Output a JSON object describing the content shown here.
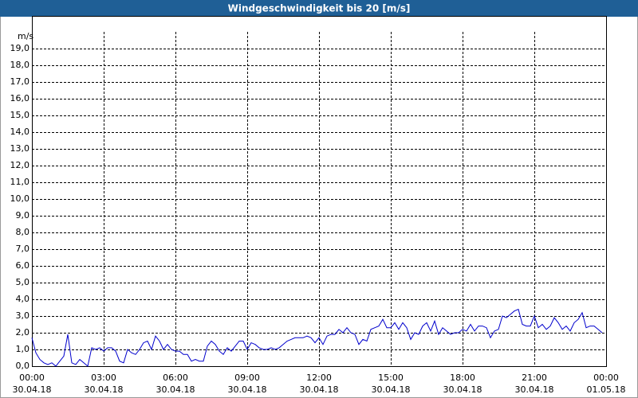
{
  "chart_data": {
    "type": "line",
    "title": "Windgeschwindigkeit bis 20 [m/s]",
    "y_label": "m/s",
    "x": [
      0,
      10,
      20,
      30,
      40,
      50,
      60,
      70,
      80,
      90,
      100,
      110,
      120,
      130,
      140,
      150,
      160,
      170,
      180,
      190,
      200,
      210,
      220,
      230,
      240,
      250,
      260,
      270,
      280,
      290,
      300,
      310,
      320,
      330,
      340,
      350,
      360,
      370,
      380,
      390,
      400,
      410,
      420,
      430,
      440,
      450,
      460,
      470,
      480,
      490,
      500,
      510,
      520,
      530,
      540,
      550,
      560,
      570,
      580,
      590,
      600,
      610,
      620,
      630,
      640,
      650,
      660,
      670,
      680,
      690,
      700,
      710,
      720,
      730,
      740,
      750,
      760,
      770,
      780,
      790,
      800,
      810,
      820,
      830,
      840,
      850,
      860,
      870,
      880,
      890,
      900,
      910,
      920,
      930,
      940,
      950,
      960,
      970,
      980,
      990,
      1000,
      1010,
      1020,
      1030,
      1040,
      1050,
      1060,
      1070,
      1080,
      1090,
      1100,
      1110,
      1120,
      1130,
      1140,
      1150,
      1160,
      1170,
      1180,
      1190,
      1200,
      1210,
      1220,
      1230,
      1240,
      1250,
      1260,
      1270,
      1280,
      1290,
      1300,
      1310,
      1320,
      1330,
      1340,
      1350,
      1360,
      1370,
      1380,
      1390,
      1400,
      1410,
      1420,
      1430
    ],
    "series": [
      {
        "color": "#0000cc",
        "values": [
          1.7,
          0.8,
          0.4,
          0.2,
          0.1,
          0.2,
          0.0,
          0.3,
          0.6,
          1.9,
          0.2,
          0.1,
          0.4,
          0.2,
          0.0,
          1.1,
          1.0,
          1.1,
          0.9,
          1.1,
          1.1,
          0.9,
          0.3,
          0.2,
          1.0,
          0.8,
          0.7,
          1.0,
          1.4,
          1.5,
          1.0,
          1.8,
          1.5,
          1.0,
          1.3,
          1.0,
          0.9,
          0.9,
          0.7,
          0.7,
          0.3,
          0.4,
          0.3,
          0.3,
          1.2,
          1.5,
          1.3,
          0.9,
          0.7,
          1.1,
          0.9,
          1.2,
          1.5,
          1.5,
          1.0,
          1.4,
          1.3,
          1.1,
          1.0,
          1.0,
          1.1,
          1.0,
          1.1,
          1.3,
          1.5,
          1.6,
          1.7,
          1.7,
          1.7,
          1.8,
          1.7,
          1.4,
          1.7,
          1.3,
          1.8,
          1.9,
          1.9,
          2.2,
          2.0,
          2.3,
          2.0,
          1.9,
          1.3,
          1.6,
          1.5,
          2.2,
          2.3,
          2.4,
          2.8,
          2.3,
          2.3,
          2.6,
          2.2,
          2.6,
          2.3,
          1.6,
          2.0,
          1.9,
          2.4,
          2.6,
          2.1,
          2.7,
          1.9,
          2.3,
          2.1,
          1.9,
          2.0,
          2.0,
          2.2,
          2.1,
          2.5,
          2.1,
          2.4,
          2.4,
          2.3,
          1.7,
          2.1,
          2.2,
          3.0,
          2.9,
          3.1,
          3.3,
          3.4,
          2.5,
          2.4,
          2.4,
          3.0,
          2.3,
          2.5,
          2.2,
          2.4,
          2.9,
          2.6,
          2.2,
          2.4,
          2.1,
          2.6,
          2.8,
          3.2,
          2.3,
          2.4,
          2.4,
          2.2,
          2.0
        ]
      }
    ],
    "xlim": [
      0,
      1440
    ],
    "xticks": [
      {
        "value": 0,
        "label": "00:00",
        "date": "30.04.18"
      },
      {
        "value": 180,
        "label": "03:00",
        "date": "30.04.18"
      },
      {
        "value": 360,
        "label": "06:00",
        "date": "30.04.18"
      },
      {
        "value": 540,
        "label": "09:00",
        "date": "30.04.18"
      },
      {
        "value": 720,
        "label": "12:00",
        "date": "30.04.18"
      },
      {
        "value": 900,
        "label": "15:00",
        "date": "30.04.18"
      },
      {
        "value": 1080,
        "label": "18:00",
        "date": "30.04.18"
      },
      {
        "value": 1260,
        "label": "21:00",
        "date": "30.04.18"
      },
      {
        "value": 1440,
        "label": "00:00",
        "date": "01.05.18"
      }
    ],
    "ylim": [
      0,
      20
    ],
    "yticks": [
      {
        "value": 0,
        "label": "0,0"
      },
      {
        "value": 1,
        "label": "1,0"
      },
      {
        "value": 2,
        "label": "2,0"
      },
      {
        "value": 3,
        "label": "3,0"
      },
      {
        "value": 4,
        "label": "4,0"
      },
      {
        "value": 5,
        "label": "5,0"
      },
      {
        "value": 6,
        "label": "6,0"
      },
      {
        "value": 7,
        "label": "7,0"
      },
      {
        "value": 8,
        "label": "8,0"
      },
      {
        "value": 9,
        "label": "9,0"
      },
      {
        "value": 10,
        "label": "10,0"
      },
      {
        "value": 11,
        "label": "11,0"
      },
      {
        "value": 12,
        "label": "12,0"
      },
      {
        "value": 13,
        "label": "13,0"
      },
      {
        "value": 14,
        "label": "14,0"
      },
      {
        "value": 15,
        "label": "15,0"
      },
      {
        "value": 16,
        "label": "16,0"
      },
      {
        "value": 17,
        "label": "17,0"
      },
      {
        "value": 18,
        "label": "18,0"
      },
      {
        "value": 19,
        "label": "19,0"
      }
    ],
    "grid": true
  }
}
